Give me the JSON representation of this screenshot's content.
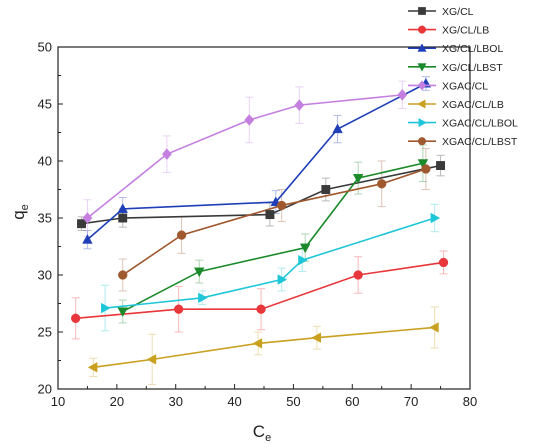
{
  "chart_data": {
    "type": "line",
    "xlabel": "C",
    "xlabel_sub": "e",
    "ylabel": "q",
    "ylabel_sub": "e",
    "xlim": [
      10,
      80
    ],
    "ylim": [
      20,
      50
    ],
    "xticks": [
      10,
      20,
      30,
      40,
      50,
      60,
      70,
      80
    ],
    "yticks": [
      20,
      25,
      30,
      35,
      40,
      45,
      50
    ],
    "grid": false,
    "legend_position": "top-right",
    "series": [
      {
        "name": "XG/CL",
        "color": "#3a3a3a",
        "marker": "square",
        "x": [
          14,
          21,
          46,
          55.5,
          75
        ],
        "y": [
          34.5,
          35.0,
          35.3,
          37.5,
          39.6
        ],
        "err": [
          0.6,
          0.8,
          1.0,
          1.0,
          0.9
        ]
      },
      {
        "name": "XG/CL/LB",
        "color": "#e8363a",
        "marker": "circle",
        "x": [
          13,
          30.5,
          44.5,
          61,
          75.5
        ],
        "y": [
          26.2,
          27.0,
          27.0,
          30.0,
          31.1
        ],
        "err": [
          1.8,
          2.0,
          1.8,
          1.6,
          1.0
        ]
      },
      {
        "name": "XG/CL/LBOL",
        "color": "#1f3fb8",
        "marker": "triangle-up",
        "x": [
          15,
          21,
          47,
          57.5,
          72.5
        ],
        "y": [
          33.1,
          35.8,
          36.4,
          42.8,
          46.8
        ],
        "err": [
          0.8,
          1.0,
          1.0,
          1.2,
          0.6
        ]
      },
      {
        "name": "XG/CL/LBST",
        "color": "#1a8a2a",
        "marker": "triangle-down",
        "x": [
          21,
          34,
          52,
          61,
          72
        ],
        "y": [
          26.8,
          30.3,
          32.4,
          38.5,
          39.8
        ],
        "err": [
          1.0,
          1.0,
          1.2,
          1.4,
          1.6
        ]
      },
      {
        "name": "XGAC/CL",
        "color": "#c47fe0",
        "marker": "diamond",
        "x": [
          15,
          28.5,
          42.5,
          51,
          68.5
        ],
        "y": [
          35.0,
          40.6,
          43.6,
          44.9,
          45.8
        ],
        "err": [
          1.6,
          1.6,
          2.0,
          1.6,
          1.2
        ]
      },
      {
        "name": "XGAC/CL/LB",
        "color": "#c9a020",
        "marker": "triangle-left",
        "x": [
          16,
          26,
          44,
          54,
          74
        ],
        "y": [
          21.9,
          22.6,
          24.0,
          24.5,
          25.4
        ],
        "err": [
          0.8,
          2.2,
          1.0,
          1.0,
          1.8
        ]
      },
      {
        "name": "XGAC/CL/LBOL",
        "color": "#1ec6d8",
        "marker": "triangle-right",
        "x": [
          18,
          34.5,
          48,
          51.5,
          74
        ],
        "y": [
          27.1,
          28.0,
          29.6,
          31.3,
          35.0
        ],
        "err": [
          2.0,
          0.6,
          1.0,
          1.0,
          1.2
        ]
      },
      {
        "name": "XGAC/CL/LBST",
        "color": "#a0582e",
        "marker": "circle",
        "x": [
          21,
          31,
          48,
          65,
          72.5
        ],
        "y": [
          30.0,
          33.5,
          36.1,
          38.0,
          39.3
        ],
        "err": [
          1.4,
          1.6,
          1.4,
          2.0,
          1.8
        ]
      }
    ]
  }
}
